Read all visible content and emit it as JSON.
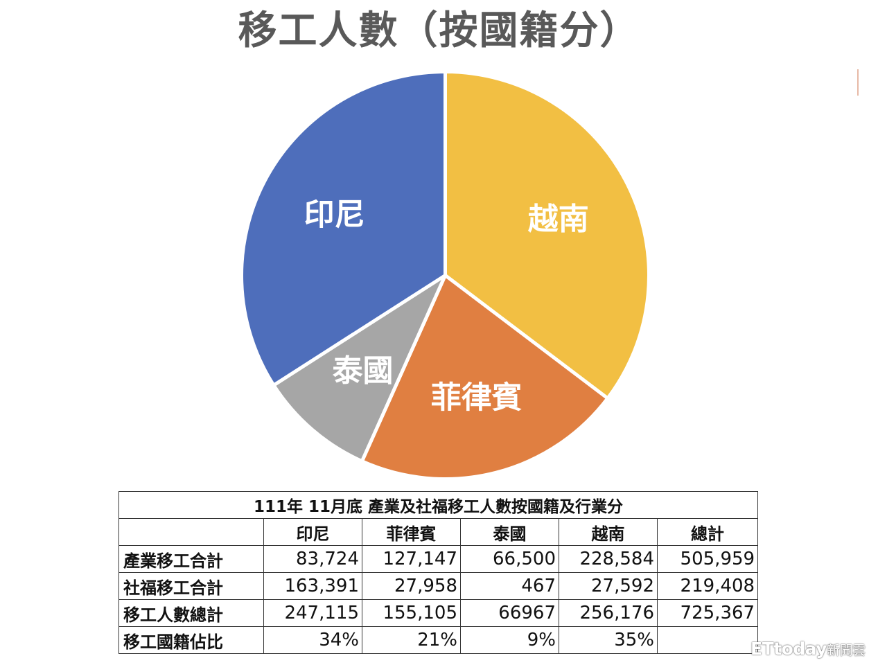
{
  "title": "移工人數（按國籍分）",
  "chart_data": {
    "type": "pie",
    "title": "移工人數（按國籍分）",
    "slices": [
      {
        "label": "越南",
        "value": 256176,
        "percent": 35,
        "color": "#F2BF43"
      },
      {
        "label": "菲律賓",
        "value": 155105,
        "percent": 21,
        "color": "#E07F41"
      },
      {
        "label": "泰國",
        "value": 66967,
        "percent": 9,
        "color": "#A6A6A6"
      },
      {
        "label": "印尼",
        "value": 247115,
        "percent": 34,
        "color": "#4E6EBB"
      }
    ],
    "start": "12 o'clock",
    "direction": "clockwise"
  },
  "table": {
    "caption": "111年 11月底 產業及社福移工人數按國籍及行業分",
    "columns": [
      "",
      "印尼",
      "菲律賓",
      "泰國",
      "越南",
      "總計"
    ],
    "rows": [
      {
        "label": "產業移工合計",
        "cells": [
          "83,724",
          "127,147",
          "66,500",
          "228,584",
          "505,959"
        ]
      },
      {
        "label": "社福移工合計",
        "cells": [
          "163,391",
          "27,958",
          "467",
          "27,592",
          "219,408"
        ]
      },
      {
        "label": "移工人數總計",
        "cells": [
          "247,115",
          "155,105",
          "66967",
          "256,176",
          "725,367"
        ]
      },
      {
        "label": "移工國籍佔比",
        "cells": [
          "34%",
          "21%",
          "9%",
          "35%",
          ""
        ]
      }
    ]
  },
  "watermark": {
    "brand": "ETtoday",
    "suffix": "新聞雲"
  }
}
